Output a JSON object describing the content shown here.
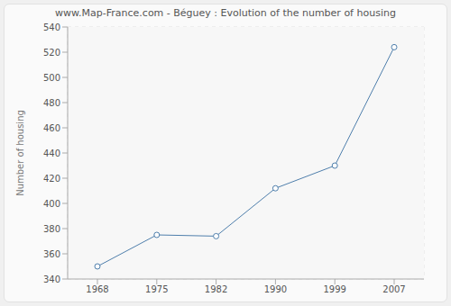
{
  "chart_data": {
    "type": "line",
    "title": "www.Map-France.com - Béguey : Evolution of the number of housing",
    "y_label": "Number of housing",
    "categories": [
      "1968",
      "1975",
      "1982",
      "1990",
      "1999",
      "2007"
    ],
    "values": [
      350,
      375,
      374,
      412,
      430,
      524
    ],
    "color": "#4f7fac",
    "marker": "circle",
    "ylim": [
      340,
      540
    ],
    "yticks": [
      340,
      360,
      380,
      400,
      420,
      440,
      460,
      480,
      500,
      520,
      540
    ],
    "grid": true
  }
}
